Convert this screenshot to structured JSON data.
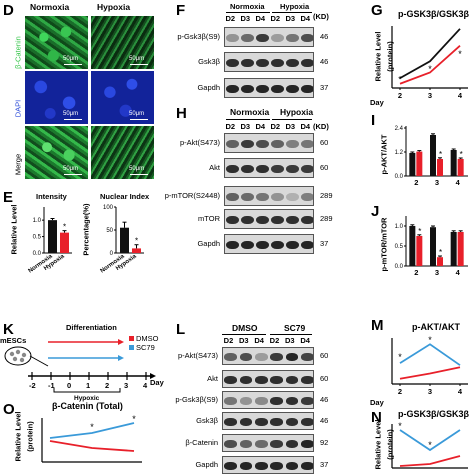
{
  "colors": {
    "red": "#e8202a",
    "blue": "#3a9ad9",
    "black": "#111111",
    "green": "#36c64a",
    "dapi": "#1c37c8"
  },
  "panel_d": {
    "letter": "D",
    "columns": [
      "Normoxia",
      "Hypoxia"
    ],
    "rows": [
      "β-Catenin",
      "DAPI",
      "Merge"
    ],
    "scale": "50μm"
  },
  "panel_e": {
    "letter": "E",
    "intensity_title": "Intensity",
    "nuclear_title": "Nuclear Index",
    "ylabel_left": "Relative Level",
    "ylabel_right": "Percentage(%)",
    "star": "*"
  },
  "panel_f": {
    "letter": "F",
    "header_normoxia": "Normoxia",
    "header_hypoxia": "Hypoxia",
    "days": [
      "D2",
      "D3",
      "D4",
      "D2",
      "D3",
      "D4"
    ],
    "kd_header": "(KD)",
    "rows": [
      {
        "label": "p-Gsk3β(S9)",
        "kd": "46"
      },
      {
        "label": "Gsk3β",
        "kd": "46"
      },
      {
        "label": "Gapdh",
        "kd": "37"
      }
    ]
  },
  "panel_h": {
    "letter": "H",
    "header_normoxia": "Normoxia",
    "header_hypoxia": "Hypoxia",
    "days": [
      "D2",
      "D3",
      "D4",
      "D2",
      "D3",
      "D4"
    ],
    "kd_header": "(KD)",
    "rows": [
      {
        "label": "p-Akt(S473)",
        "kd": "60"
      },
      {
        "label": "Akt",
        "kd": "60"
      },
      {
        "label": "p-mTOR(S2448)",
        "kd": "289"
      },
      {
        "label": "mTOR",
        "kd": "289"
      },
      {
        "label": "Gapdh",
        "kd": "37"
      }
    ]
  },
  "panel_k": {
    "letter": "K",
    "cells_label": "mESCs",
    "differentiation": "Differentiation",
    "legend": [
      "DMSO",
      "SC79"
    ],
    "ticks": [
      "-2",
      "-1",
      "0",
      "1",
      "2",
      "3",
      "4"
    ],
    "day": "Day",
    "hypoxic": "Hypoxic"
  },
  "panel_l": {
    "letter": "L",
    "header_dmso": "DMSO",
    "header_sc79": "SC79",
    "days": [
      "D2",
      "D3",
      "D4",
      "D2",
      "D3",
      "D4"
    ],
    "rows": [
      {
        "label": "p-Akt(S473)",
        "kd": "60"
      },
      {
        "label": "Akt",
        "kd": "60"
      },
      {
        "label": "p-Gsk3β(S9)",
        "kd": "46"
      },
      {
        "label": "Gsk3β",
        "kd": "46"
      },
      {
        "label": "β-Catenin",
        "kd": "92"
      },
      {
        "label": "Gapdh",
        "kd": "37"
      }
    ]
  },
  "panel_g": {
    "letter": "G",
    "title": "p-GSK3β/GSK3β",
    "ylabel": "Relative Level",
    "ylabel2": "(protein)",
    "xlabel": "Day"
  },
  "panel_i": {
    "letter": "I",
    "ylabel": "p-AKT/AKT"
  },
  "panel_j": {
    "letter": "J",
    "ylabel": "p-mTOR/mTOR"
  },
  "panel_m": {
    "letter": "M",
    "title": "p-AKT/AKT",
    "xlabel": "Day"
  },
  "panel_n": {
    "letter": "N",
    "title": "p-GSK3β/GSK3β",
    "ylabel": "Relative Level",
    "ylabel2": "(protein)"
  },
  "panel_o": {
    "letter": "O",
    "title": "β-Catenin (Total)",
    "ylabel": "Relative Level",
    "ylabel2": "(protein)"
  },
  "chart_data": [
    {
      "panel": "E-intensity",
      "type": "bar",
      "categories": [
        "Normoxia",
        "Hypoxia"
      ],
      "values": [
        1.0,
        0.62
      ],
      "errors": [
        0.05,
        0.06
      ],
      "ylim": [
        0,
        1.4
      ],
      "yticks": [
        "0.0",
        "0.5",
        "1.0"
      ],
      "colors": [
        "#111111",
        "#e8202a"
      ],
      "star": [
        false,
        true
      ]
    },
    {
      "panel": "E-nuclear",
      "type": "bar",
      "categories": [
        "Normoxia",
        "Hypoxia"
      ],
      "values": [
        55,
        10
      ],
      "errors": [
        12,
        8
      ],
      "ylim": [
        0,
        100
      ],
      "yticks": [
        "0",
        "50",
        "100"
      ],
      "colors": [
        "#111111",
        "#e8202a"
      ],
      "star": [
        false,
        true
      ]
    },
    {
      "panel": "G",
      "type": "line",
      "x": [
        "2",
        "3",
        "4"
      ],
      "ylim": [
        0,
        2.2
      ],
      "series": [
        {
          "color": "#111111",
          "values": [
            0.35,
            0.95,
            2.1
          ]
        },
        {
          "color": "#e8202a",
          "values": [
            0.15,
            0.55,
            1.5
          ]
        }
      ],
      "stars": [
        {
          "x": "2",
          "y": 0.3,
          "text": "*"
        },
        {
          "x": "3",
          "y": 0.68,
          "text": "*"
        },
        {
          "x": "4",
          "y": 1.2,
          "text": "*"
        }
      ]
    },
    {
      "panel": "I",
      "type": "bar",
      "x": [
        "2",
        "3",
        "4"
      ],
      "ylim": [
        0,
        2.5
      ],
      "yticks": [
        "0.0",
        "1.2",
        "2.4"
      ],
      "series": [
        {
          "color": "#111111",
          "values": [
            1.15,
            2.05,
            1.3
          ],
          "errors": [
            0.05,
            0.06,
            0.05
          ]
        },
        {
          "color": "#e8202a",
          "values": [
            1.22,
            0.85,
            0.85
          ],
          "errors": [
            0.05,
            0.06,
            0.05
          ]
        }
      ],
      "stars": [
        false,
        true,
        true
      ]
    },
    {
      "panel": "J",
      "type": "bar",
      "x": [
        "2",
        "3",
        "4"
      ],
      "ylim": [
        0,
        1.25
      ],
      "yticks": [
        "0.0",
        "0.5",
        "1.0"
      ],
      "series": [
        {
          "color": "#111111",
          "values": [
            1.0,
            0.97,
            0.85
          ],
          "errors": [
            0.03,
            0.03,
            0.03
          ]
        },
        {
          "color": "#e8202a",
          "values": [
            0.75,
            0.22,
            0.85
          ],
          "errors": [
            0.03,
            0.03,
            0.03
          ]
        }
      ],
      "stars": [
        true,
        true,
        false
      ]
    },
    {
      "panel": "M",
      "type": "line",
      "x": [
        "2",
        "3",
        "4"
      ],
      "ylim": [
        0,
        2.2
      ],
      "series": [
        {
          "color": "#3a9ad9",
          "values": [
            1.0,
            1.9,
            0.9
          ]
        },
        {
          "color": "#e8202a",
          "values": [
            0.25,
            0.5,
            0.8
          ]
        }
      ],
      "stars": [
        {
          "x": "2",
          "y": 1.3,
          "text": "*"
        },
        {
          "x": "3",
          "y": 2.1,
          "text": "*"
        }
      ]
    },
    {
      "panel": "N",
      "type": "line",
      "x": [
        "2",
        "3",
        "4"
      ],
      "ylim": [
        0,
        2.2
      ],
      "series": [
        {
          "color": "#3a9ad9",
          "values": [
            1.9,
            0.9,
            1.9
          ]
        },
        {
          "color": "#e8202a",
          "values": [
            0.1,
            0.2,
            0.6
          ]
        }
      ],
      "stars": [
        {
          "x": "2",
          "y": 2.1,
          "text": "*"
        },
        {
          "x": "3",
          "y": 1.15,
          "text": "*"
        }
      ]
    },
    {
      "panel": "O",
      "type": "line",
      "x": [
        "2",
        "3",
        "4"
      ],
      "ylim": [
        0,
        2.2
      ],
      "series": [
        {
          "color": "#3a9ad9",
          "values": [
            1.2,
            1.45,
            1.95
          ]
        },
        {
          "color": "#e8202a",
          "values": [
            1.05,
            0.7,
            0.55
          ]
        }
      ],
      "stars": [
        {
          "x": "3",
          "y": 1.75,
          "text": "*"
        },
        {
          "x": "4",
          "y": 2.15,
          "text": "*"
        }
      ]
    }
  ]
}
